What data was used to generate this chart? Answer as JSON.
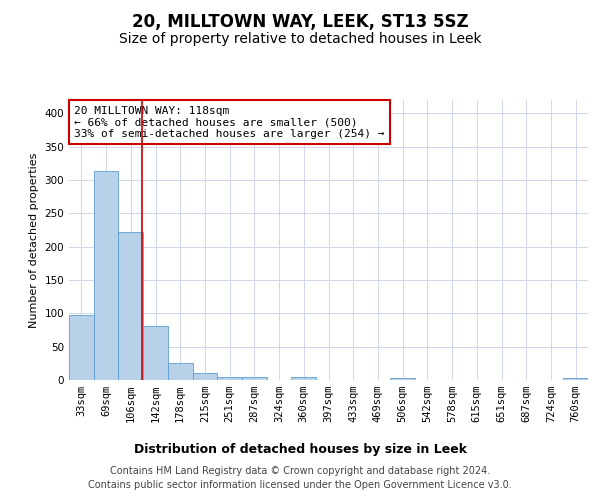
{
  "title": "20, MILLTOWN WAY, LEEK, ST13 5SZ",
  "subtitle": "Size of property relative to detached houses in Leek",
  "xlabel": "Distribution of detached houses by size in Leek",
  "ylabel": "Number of detached properties",
  "categories": [
    "33sqm",
    "69sqm",
    "106sqm",
    "142sqm",
    "178sqm",
    "215sqm",
    "251sqm",
    "287sqm",
    "324sqm",
    "360sqm",
    "397sqm",
    "433sqm",
    "469sqm",
    "506sqm",
    "542sqm",
    "578sqm",
    "615sqm",
    "651sqm",
    "687sqm",
    "724sqm",
    "760sqm"
  ],
  "values": [
    98,
    313,
    222,
    81,
    25,
    11,
    5,
    4,
    0,
    5,
    0,
    0,
    0,
    3,
    0,
    0,
    0,
    0,
    0,
    0,
    3
  ],
  "bar_color": "#b8d0e8",
  "bar_edge_color": "#5a9fd4",
  "vline_x_index": 2.45,
  "vline_color": "#cc0000",
  "annotation_text": "20 MILLTOWN WAY: 118sqm\n← 66% of detached houses are smaller (500)\n33% of semi-detached houses are larger (254) →",
  "annotation_box_color": "#ffffff",
  "annotation_box_edge": "#cc0000",
  "ylim": [
    0,
    420
  ],
  "yticks": [
    0,
    50,
    100,
    150,
    200,
    250,
    300,
    350,
    400
  ],
  "footer": "Contains HM Land Registry data © Crown copyright and database right 2024.\nContains public sector information licensed under the Open Government Licence v3.0.",
  "background_color": "#ffffff",
  "grid_color": "#d0d8e8",
  "title_fontsize": 12,
  "subtitle_fontsize": 10,
  "xlabel_fontsize": 9,
  "ylabel_fontsize": 8,
  "tick_fontsize": 7.5,
  "footer_fontsize": 7,
  "annotation_fontsize": 8
}
